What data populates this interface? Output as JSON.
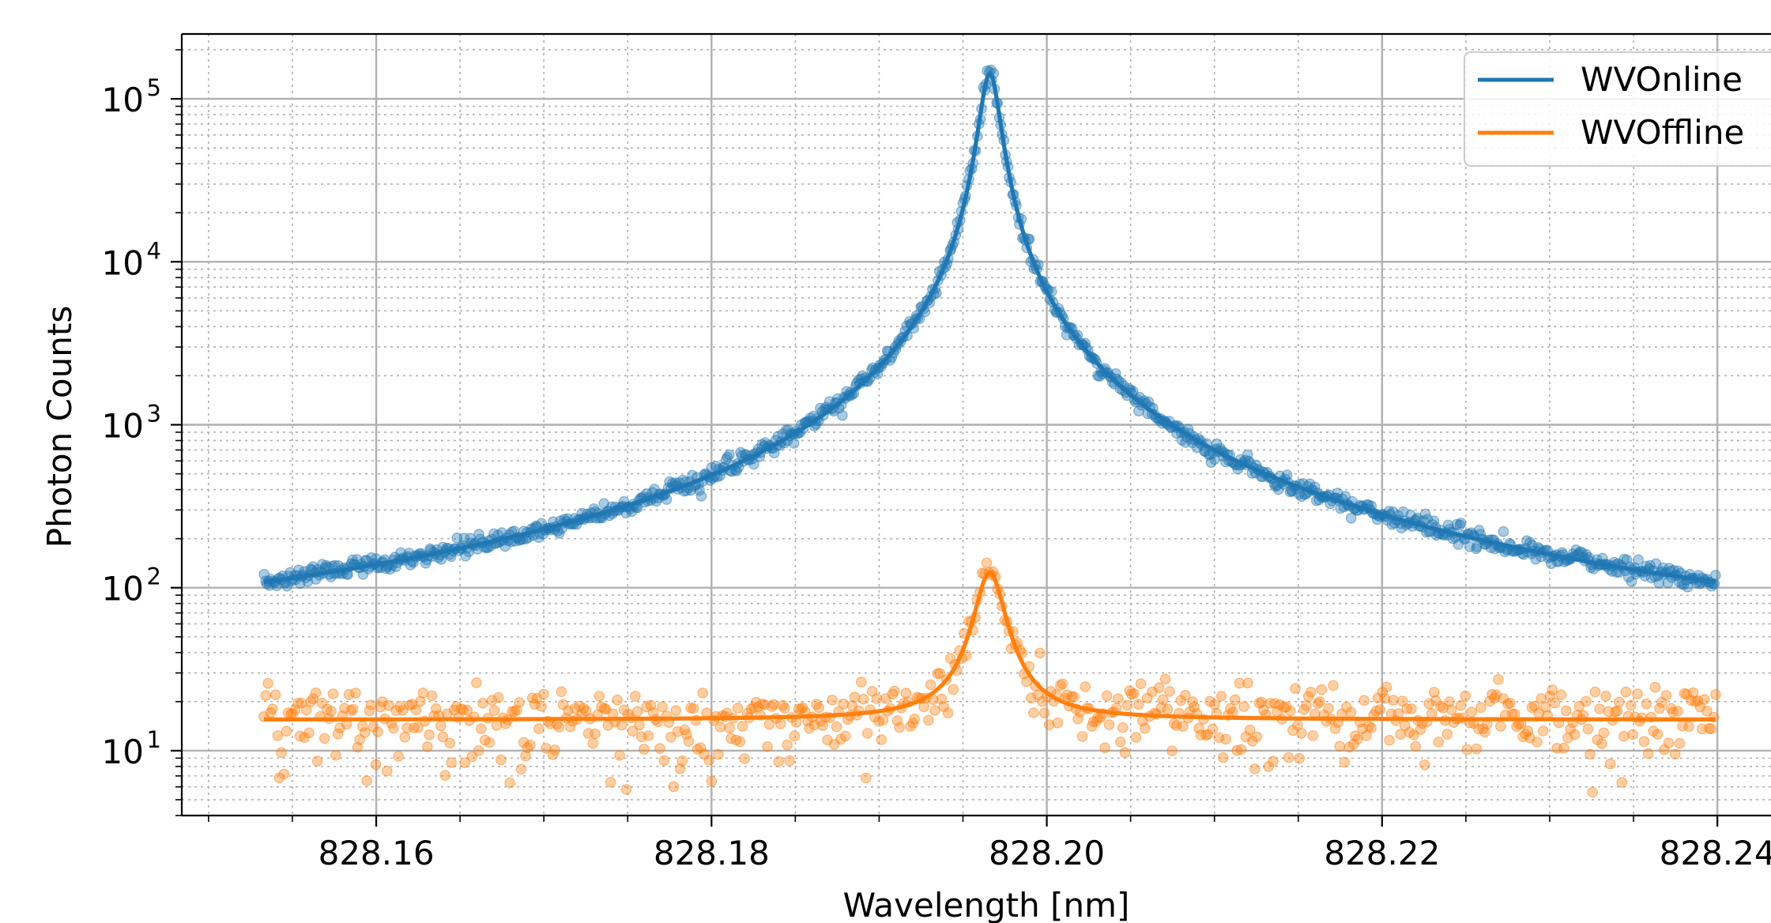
{
  "chart_data": {
    "type": "scatter",
    "xlabel": "Wavelength [nm]",
    "ylabel": "Photon Counts",
    "xlim": [
      828.1484,
      828.2432
    ],
    "ylim": [
      4,
      250000
    ],
    "yscale": "log",
    "grid": true,
    "minor_grid": true,
    "legend_position": "top-right",
    "x_ticks": [
      {
        "value": 828.16,
        "label": "828.16"
      },
      {
        "value": 828.18,
        "label": "828.18"
      },
      {
        "value": 828.2,
        "label": "828.20"
      },
      {
        "value": 828.22,
        "label": "828.22"
      },
      {
        "value": 828.24,
        "label": "828.24"
      }
    ],
    "y_ticks": [
      {
        "value": 10,
        "base": "10",
        "exp": "1"
      },
      {
        "value": 100,
        "base": "10",
        "exp": "2"
      },
      {
        "value": 1000,
        "base": "10",
        "exp": "3"
      },
      {
        "value": 10000,
        "base": "10",
        "exp": "4"
      },
      {
        "value": 100000,
        "base": "10",
        "exp": "5"
      }
    ],
    "series": [
      {
        "name": "WVOnline",
        "color": "#1f77b4",
        "x_range": [
          828.1533,
          828.2399
        ],
        "scatter_points": 1000,
        "scatter_scatter_rel": 0.06,
        "fit": {
          "model": "lorentzian",
          "center": 828.1966,
          "peak": 150000,
          "hwhm": 0.00062,
          "baseline": 30,
          "samples": [
            [
              828.1533,
              108
            ],
            [
              828.16,
              114
            ],
            [
              828.17,
              155
            ],
            [
              828.18,
              330
            ],
            [
              828.19,
              1530
            ],
            [
              828.1966,
              150000
            ],
            [
              828.2,
              3900
            ],
            [
              828.21,
              490
            ],
            [
              828.22,
              185
            ],
            [
              828.23,
              125
            ],
            [
              828.2399,
              106
            ]
          ]
        }
      },
      {
        "name": "WVOffline",
        "color": "#ff7f0e",
        "x_range": [
          828.1533,
          828.2399
        ],
        "scatter_points": 650,
        "scatter_scatter_rel": 0.28,
        "fit": {
          "model": "lorentzian",
          "center": 828.1966,
          "peak": 124,
          "hwhm": 0.0009,
          "baseline": 15.5,
          "samples": [
            [
              828.1533,
              15.5
            ],
            [
              828.18,
              16
            ],
            [
              828.19,
              17.5
            ],
            [
              828.195,
              48
            ],
            [
              828.1966,
              124
            ],
            [
              828.198,
              55
            ],
            [
              828.2,
              22
            ],
            [
              828.22,
              15.6
            ],
            [
              828.2399,
              15.5
            ]
          ]
        }
      }
    ]
  }
}
